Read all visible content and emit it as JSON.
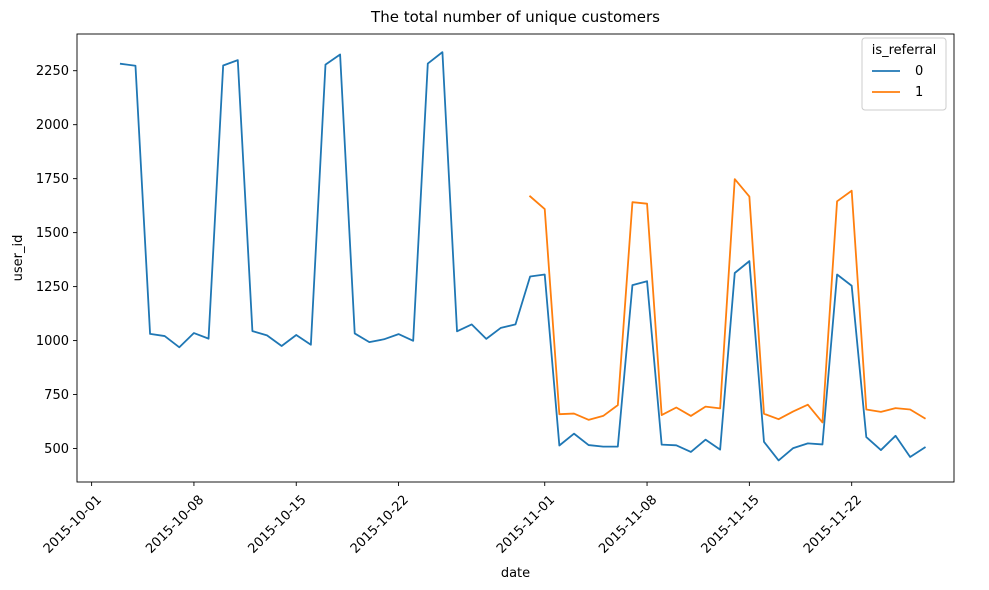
{
  "chart_data": {
    "type": "line",
    "title": "The total number of unique customers",
    "xlabel": "date",
    "ylabel": "user_id",
    "xlim": [
      "2015-09-30",
      "2015-11-29"
    ],
    "ylim": [
      345,
      2420
    ],
    "x_ticks": [
      "2015-10-01",
      "2015-10-08",
      "2015-10-15",
      "2015-10-22",
      "2015-11-01",
      "2015-11-08",
      "2015-11-15",
      "2015-11-22"
    ],
    "y_ticks": [
      500,
      750,
      1000,
      1250,
      1500,
      1750,
      2000,
      2250
    ],
    "grid": false,
    "legend": {
      "title": "is_referral",
      "position": "top-right"
    },
    "series": [
      {
        "name": "0",
        "color": "#1f77b4",
        "points": [
          [
            "2015-10-03",
            2282
          ],
          [
            "2015-10-04",
            2273
          ],
          [
            "2015-10-05",
            1031
          ],
          [
            "2015-10-06",
            1021
          ],
          [
            "2015-10-07",
            969
          ],
          [
            "2015-10-08",
            1035
          ],
          [
            "2015-10-09",
            1009
          ],
          [
            "2015-10-10",
            2274
          ],
          [
            "2015-10-11",
            2299
          ],
          [
            "2015-10-12",
            1044
          ],
          [
            "2015-10-13",
            1024
          ],
          [
            "2015-10-14",
            975
          ],
          [
            "2015-10-15",
            1026
          ],
          [
            "2015-10-16",
            981
          ],
          [
            "2015-10-17",
            2278
          ],
          [
            "2015-10-18",
            2325
          ],
          [
            "2015-10-19",
            1033
          ],
          [
            "2015-10-20",
            993
          ],
          [
            "2015-10-21",
            1006
          ],
          [
            "2015-10-22",
            1030
          ],
          [
            "2015-10-23",
            999
          ],
          [
            "2015-10-24",
            2283
          ],
          [
            "2015-10-25",
            2336
          ],
          [
            "2015-10-26",
            1043
          ],
          [
            "2015-10-27",
            1075
          ],
          [
            "2015-10-28",
            1008
          ],
          [
            "2015-10-29",
            1059
          ],
          [
            "2015-10-30",
            1075
          ],
          [
            "2015-10-31",
            1297
          ],
          [
            "2015-11-01",
            1306
          ],
          [
            "2015-11-02",
            514
          ],
          [
            "2015-11-03",
            569
          ],
          [
            "2015-11-04",
            516
          ],
          [
            "2015-11-05",
            509
          ],
          [
            "2015-11-06",
            509
          ],
          [
            "2015-11-07",
            1257
          ],
          [
            "2015-11-08",
            1275
          ],
          [
            "2015-11-09",
            518
          ],
          [
            "2015-11-10",
            515
          ],
          [
            "2015-11-11",
            484
          ],
          [
            "2015-11-12",
            541
          ],
          [
            "2015-11-13",
            495
          ],
          [
            "2015-11-14",
            1313
          ],
          [
            "2015-11-15",
            1368
          ],
          [
            "2015-11-16",
            531
          ],
          [
            "2015-11-17",
            445
          ],
          [
            "2015-11-18",
            502
          ],
          [
            "2015-11-19",
            524
          ],
          [
            "2015-11-20",
            519
          ],
          [
            "2015-11-21",
            1306
          ],
          [
            "2015-11-22",
            1254
          ],
          [
            "2015-11-23",
            553
          ],
          [
            "2015-11-24",
            493
          ],
          [
            "2015-11-25",
            559
          ],
          [
            "2015-11-26",
            461
          ],
          [
            "2015-11-27",
            505
          ]
        ]
      },
      {
        "name": "1",
        "color": "#ff7f0e",
        "points": [
          [
            "2015-10-31",
            1668
          ],
          [
            "2015-11-01",
            1609
          ],
          [
            "2015-11-02",
            659
          ],
          [
            "2015-11-03",
            662
          ],
          [
            "2015-11-04",
            633
          ],
          [
            "2015-11-05",
            651
          ],
          [
            "2015-11-06",
            701
          ],
          [
            "2015-11-07",
            1641
          ],
          [
            "2015-11-08",
            1634
          ],
          [
            "2015-11-09",
            655
          ],
          [
            "2015-11-10",
            690
          ],
          [
            "2015-11-11",
            651
          ],
          [
            "2015-11-12",
            694
          ],
          [
            "2015-11-13",
            686
          ],
          [
            "2015-11-14",
            1748
          ],
          [
            "2015-11-15",
            1667
          ],
          [
            "2015-11-16",
            661
          ],
          [
            "2015-11-17",
            636
          ],
          [
            "2015-11-18",
            672
          ],
          [
            "2015-11-19",
            703
          ],
          [
            "2015-11-20",
            621
          ],
          [
            "2015-11-21",
            1645
          ],
          [
            "2015-11-22",
            1694
          ],
          [
            "2015-11-23",
            681
          ],
          [
            "2015-11-24",
            670
          ],
          [
            "2015-11-25",
            687
          ],
          [
            "2015-11-26",
            681
          ],
          [
            "2015-11-27",
            640
          ]
        ]
      }
    ]
  }
}
